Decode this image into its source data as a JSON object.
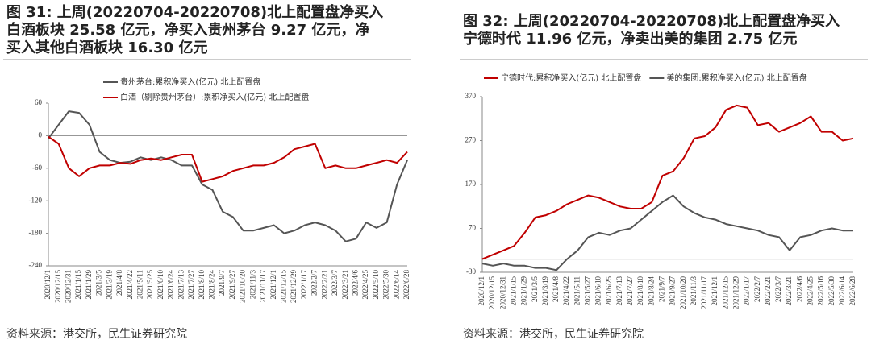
{
  "chart_data": [
    {
      "type": "line",
      "title": [
        "图 31: 上周(20220704-20220708)北上配置盘净买入",
        "白酒板块 25.58 亿元，净买入贵州茅台 9.27 亿元，净",
        "买入其他白酒板块 16.30 亿元"
      ],
      "source": "资料来源：港交所，民生证券研究院",
      "legend": "top",
      "categories": [
        "2020/12/1",
        "2020/12/15",
        "2020/12/31",
        "2021/1/15",
        "2021/1/29",
        "2021/3/5",
        "2021/3/19",
        "2021/4/8",
        "2021/4/22",
        "2021/5/11",
        "2021/5/25",
        "2021/6/10",
        "2021/6/24",
        "2021/7/13",
        "2021/7/27",
        "2021/8/10",
        "2021/8/24",
        "2021/9/7",
        "2021/9/27",
        "2021/10/20",
        "2021/11/3",
        "2021/11/17",
        "2021/12/1",
        "2021/12/15",
        "2021/12/29",
        "2022/1/17",
        "2022/2/7",
        "2022/2/21",
        "2022/3/7",
        "2022/3/21",
        "2022/4/6",
        "2022/4/25",
        "2022/5/10",
        "2022/5/30",
        "2022/6/14",
        "2022/6/28"
      ],
      "series": [
        {
          "name": "贵州茅台:累积净买入(亿元) 北上配置盘",
          "color": "#555555",
          "values": [
            -5,
            20,
            45,
            42,
            20,
            -30,
            -45,
            -50,
            -48,
            -40,
            -45,
            -40,
            -45,
            -55,
            -55,
            -90,
            -100,
            -140,
            -150,
            -175,
            -175,
            -170,
            -165,
            -180,
            -175,
            -165,
            -160,
            -165,
            -175,
            -195,
            -190,
            -160,
            -170,
            -160,
            -90,
            -45
          ]
        },
        {
          "name": "白酒（剔除贵州茅台）:累积净买入(亿元) 北上配置盘",
          "color": "#c00000",
          "values": [
            -2,
            -15,
            -60,
            -75,
            -60,
            -55,
            -55,
            -50,
            -52,
            -45,
            -42,
            -45,
            -40,
            -35,
            -35,
            -85,
            -80,
            -75,
            -65,
            -60,
            -55,
            -55,
            -50,
            -40,
            -25,
            -20,
            -15,
            -60,
            -55,
            -60,
            -60,
            -55,
            -50,
            -45,
            -50,
            -30
          ]
        }
      ],
      "ylim": [
        -240,
        60
      ],
      "yticks": [
        -240,
        -180,
        -120,
        -60,
        0,
        60
      ]
    },
    {
      "type": "line",
      "title": [
        "图 32: 上周(20220704-20220708)北上配置盘净买入",
        "宁德时代 11.96 亿元，净卖出美的集团 2.75 亿元"
      ],
      "source": "资料来源：港交所，民生证券研究院",
      "legend": "top",
      "categories": [
        "2020/12/1",
        "2020/12/15",
        "2020/12/31",
        "2021/1/15",
        "2021/1/29",
        "2021/3/5",
        "2021/3/19",
        "2021/4/8",
        "2021/4/22",
        "2021/5/11",
        "2021/5/27",
        "2021/6/10",
        "2021/6/25",
        "2021/7/13",
        "2021/7/27",
        "2021/8/10",
        "2021/8/24",
        "2021/9/7",
        "2021/9/27",
        "2021/10/20",
        "2021/11/3",
        "2021/11/17",
        "2021/12/1",
        "2021/12/15",
        "2021/12/29",
        "2022/1/17",
        "2022/2/7",
        "2022/2/21",
        "2022/3/7",
        "2022/3/21",
        "2022/4/6",
        "2022/4/25",
        "2022/5/16",
        "2022/5/30",
        "2022/6/14",
        "2022/6/28"
      ],
      "series": [
        {
          "name": "宁德时代:累积净买入(亿元) 北上配置盘",
          "color": "#c00000",
          "values": [
            0,
            10,
            20,
            30,
            60,
            95,
            100,
            110,
            125,
            135,
            145,
            140,
            130,
            120,
            115,
            115,
            130,
            190,
            200,
            230,
            275,
            280,
            300,
            340,
            350,
            345,
            305,
            310,
            290,
            300,
            310,
            325,
            290,
            290,
            270,
            275
          ]
        },
        {
          "name": "美的集团:累积净买入(亿元) 北上配置盘",
          "color": "#555555",
          "values": [
            -10,
            -15,
            -10,
            -15,
            -15,
            -20,
            -20,
            -25,
            0,
            20,
            50,
            60,
            55,
            65,
            70,
            90,
            110,
            130,
            145,
            120,
            105,
            95,
            90,
            80,
            75,
            70,
            65,
            55,
            50,
            20,
            50,
            55,
            65,
            70,
            65,
            65
          ]
        }
      ],
      "ylim": [
        -30,
        370
      ],
      "yticks": [
        -30,
        70,
        170,
        270,
        370
      ]
    }
  ]
}
